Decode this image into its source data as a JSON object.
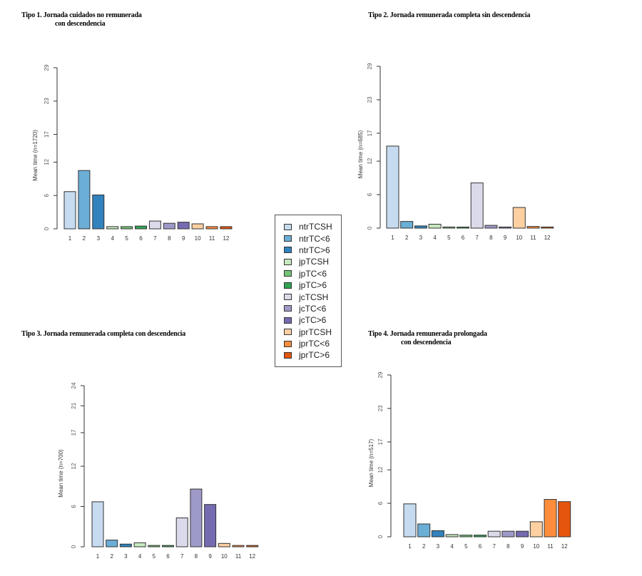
{
  "legend": {
    "items": [
      {
        "label": "ntrTCSH",
        "color": "#c6dbef"
      },
      {
        "label": "ntrTC<6",
        "color": "#6baed6"
      },
      {
        "label": "ntrTC>6",
        "color": "#3182bd"
      },
      {
        "label": "jpTCSH",
        "color": "#c7e9c0"
      },
      {
        "label": "jpTC<6",
        "color": "#74c476"
      },
      {
        "label": "jpTC>6",
        "color": "#31a354"
      },
      {
        "label": "jcTCSH",
        "color": "#dadaeb"
      },
      {
        "label": "jcTC<6",
        "color": "#9e9ac8"
      },
      {
        "label": "jcTC>6",
        "color": "#756bb1"
      },
      {
        "label": "jprTCSH",
        "color": "#fdd0a2"
      },
      {
        "label": "jprTC<6",
        "color": "#fd8d3c"
      },
      {
        "label": "jprTC>6",
        "color": "#e6550d"
      }
    ]
  },
  "chart_data": [
    {
      "type": "bar",
      "title": "Tipo 1. Jornada cuidados no remunerada",
      "title_line2": "con descendencia",
      "xlabel": "",
      "ylabel": "Mean time (n=1720)",
      "categories": [
        "1",
        "2",
        "3",
        "4",
        "5",
        "6",
        "7",
        "8",
        "9",
        "10",
        "11",
        "12"
      ],
      "values": [
        6.7,
        10.5,
        6.1,
        0.4,
        0.4,
        0.5,
        1.4,
        1.0,
        1.2,
        0.9,
        0.4,
        0.4
      ],
      "yticks": [
        0,
        6,
        12,
        17,
        23,
        29
      ],
      "ytick_labels": [
        "0",
        "6",
        "12",
        "17",
        "23",
        "29"
      ],
      "ylim": [
        0,
        29
      ],
      "grid": false
    },
    {
      "type": "bar",
      "title": "Tipo 2. Jornada remunerada completa sin descendencia",
      "title_line2": "",
      "xlabel": "",
      "ylabel": "Mean time (n=685)",
      "categories": [
        "1",
        "2",
        "3",
        "4",
        "5",
        "6",
        "7",
        "8",
        "9",
        "10",
        "11",
        "12"
      ],
      "values": [
        14.7,
        1.2,
        0.4,
        0.7,
        0.2,
        0.1,
        8.1,
        0.5,
        0.2,
        3.7,
        0.3,
        0.2
      ],
      "yticks": [
        0,
        6,
        12,
        17,
        23,
        29
      ],
      "ytick_labels": [
        "0",
        "6",
        "12",
        "17",
        "23",
        "29"
      ],
      "ylim": [
        0,
        29
      ],
      "grid": false
    },
    {
      "type": "bar",
      "title": "Tipo 3. Jornada remunerada completa con descendencia",
      "title_line2": "",
      "xlabel": "",
      "ylabel": "Mean time (n=700)",
      "categories": [
        "1",
        "2",
        "3",
        "4",
        "5",
        "6",
        "7",
        "8",
        "9",
        "10",
        "11",
        "12"
      ],
      "values": [
        6.7,
        1.0,
        0.4,
        0.6,
        0.2,
        0.2,
        4.3,
        8.6,
        6.3,
        0.5,
        0.2,
        0.2
      ],
      "yticks": [
        0,
        6,
        12,
        17,
        21,
        24
      ],
      "ytick_labels": [
        "0",
        "6",
        "12",
        "17",
        "21",
        "24"
      ],
      "ylim": [
        0,
        24
      ],
      "grid": false
    },
    {
      "type": "bar",
      "title": "Tipo 4. Jornada remunerada prolongada",
      "title_line2": "con descendencia",
      "xlabel": "",
      "ylabel": "Mean time (n=517)",
      "categories": [
        "1",
        "2",
        "3",
        "4",
        "5",
        "6",
        "7",
        "8",
        "9",
        "10",
        "11",
        "12"
      ],
      "values": [
        5.9,
        2.3,
        1.1,
        0.4,
        0.3,
        0.3,
        1.0,
        1.0,
        1.0,
        2.7,
        6.7,
        6.3
      ],
      "yticks": [
        0,
        6,
        12,
        17,
        23,
        29
      ],
      "ytick_labels": [
        "0",
        "6",
        "12",
        "17",
        "23",
        "29"
      ],
      "ylim": [
        0,
        29
      ],
      "grid": false
    }
  ]
}
